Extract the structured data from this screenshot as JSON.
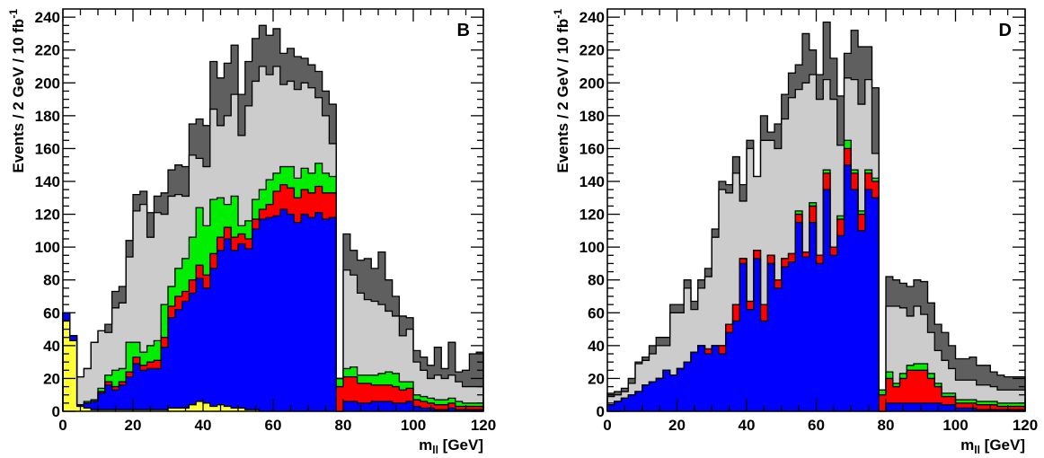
{
  "chart_data": [
    {
      "type": "bar",
      "stacked": true,
      "panel_label": "B",
      "xlabel": "m",
      "xlabel_sub": "ll",
      "xlabel_unit": " [GeV]",
      "ylabel": "Events / 2 GeV / 10 fb",
      "ylabel_sup": "-1",
      "xlim": [
        0,
        120
      ],
      "ylim": [
        0,
        245
      ],
      "xticks": [
        0,
        20,
        40,
        60,
        80,
        100,
        120
      ],
      "yticks": [
        0,
        20,
        40,
        60,
        80,
        100,
        120,
        140,
        160,
        180,
        200,
        220,
        240
      ],
      "bin_width": 2,
      "x": [
        1,
        3,
        5,
        7,
        9,
        11,
        13,
        15,
        17,
        19,
        21,
        23,
        25,
        27,
        29,
        31,
        33,
        35,
        37,
        39,
        41,
        43,
        45,
        47,
        49,
        51,
        53,
        55,
        57,
        59,
        61,
        63,
        65,
        67,
        69,
        71,
        73,
        75,
        77,
        79,
        81,
        83,
        85,
        87,
        89,
        91,
        93,
        95,
        97,
        99,
        101,
        103,
        105,
        107,
        109,
        111,
        113,
        115,
        117,
        119
      ],
      "series": [
        {
          "color": "#ffff33",
          "values": [
            55,
            43,
            3,
            2,
            1,
            1,
            1,
            1,
            1,
            1,
            1,
            1,
            1,
            1,
            1,
            2,
            2,
            2,
            4,
            6,
            5,
            3,
            4,
            3,
            2,
            2,
            1,
            1,
            0,
            0,
            0,
            0,
            0,
            0,
            0,
            0,
            0,
            0,
            0,
            0,
            0,
            0,
            0,
            0,
            0,
            0,
            0,
            0,
            0,
            0,
            0,
            0,
            0,
            0,
            0,
            0,
            0,
            0,
            0,
            0
          ]
        },
        {
          "color": "#0000ff",
          "values": [
            5,
            3,
            1,
            3,
            5,
            10,
            15,
            12,
            15,
            20,
            28,
            24,
            25,
            25,
            38,
            55,
            60,
            65,
            68,
            75,
            70,
            84,
            94,
            102,
            96,
            100,
            98,
            110,
            117,
            118,
            119,
            123,
            120,
            115,
            120,
            118,
            121,
            117,
            118,
            0,
            6,
            6,
            5,
            5,
            6,
            6,
            6,
            5,
            5,
            6,
            3,
            2,
            2,
            1,
            1,
            2,
            1,
            1,
            1,
            1
          ]
        },
        {
          "color": "#ff0000",
          "values": [
            0,
            0,
            0,
            0,
            0,
            1,
            2,
            2,
            2,
            3,
            4,
            3,
            4,
            5,
            6,
            7,
            8,
            6,
            8,
            8,
            8,
            9,
            8,
            7,
            8,
            6,
            6,
            6,
            6,
            8,
            15,
            15,
            16,
            15,
            15,
            15,
            16,
            16,
            15,
            15,
            15,
            15,
            12,
            12,
            10,
            10,
            10,
            10,
            8,
            8,
            4,
            4,
            3,
            3,
            3,
            3,
            2,
            2,
            2,
            2
          ]
        },
        {
          "color": "#00ee00",
          "values": [
            0,
            0,
            0,
            1,
            1,
            2,
            4,
            10,
            8,
            18,
            9,
            8,
            10,
            12,
            20,
            12,
            17,
            20,
            26,
            35,
            30,
            33,
            24,
            14,
            25,
            5,
            11,
            12,
            12,
            15,
            11,
            11,
            13,
            12,
            13,
            12,
            14,
            12,
            10,
            5,
            5,
            6,
            5,
            5,
            6,
            7,
            8,
            8,
            5,
            4,
            3,
            3,
            3,
            3,
            3,
            3,
            3,
            2,
            2,
            2
          ]
        },
        {
          "color": "#cccccc",
          "values": [
            0,
            0,
            17,
            20,
            35,
            35,
            26,
            38,
            40,
            52,
            80,
            90,
            66,
            78,
            55,
            55,
            45,
            38,
            50,
            30,
            36,
            55,
            44,
            54,
            62,
            55,
            70,
            72,
            75,
            64,
            65,
            50,
            52,
            54,
            52,
            52,
            40,
            35,
            20,
            0,
            60,
            56,
            50,
            46,
            45,
            42,
            37,
            35,
            28,
            32,
            20,
            16,
            12,
            15,
            13,
            14,
            12,
            10,
            10,
            10
          ]
        },
        {
          "color": "#5f5f5f",
          "values": [
            0,
            0,
            0,
            0,
            0,
            0,
            5,
            10,
            10,
            10,
            10,
            8,
            15,
            10,
            13,
            16,
            18,
            18,
            19,
            24,
            25,
            29,
            29,
            32,
            30,
            25,
            27,
            26,
            25,
            24,
            23,
            19,
            20,
            20,
            15,
            14,
            16,
            15,
            24,
            0,
            22,
            15,
            20,
            25,
            20,
            32,
            19,
            12,
            12,
            7,
            7,
            8,
            8,
            17,
            6,
            20,
            6,
            10,
            20,
            21
          ]
        }
      ]
    },
    {
      "type": "bar",
      "stacked": true,
      "panel_label": "D",
      "xlabel": "m",
      "xlabel_sub": "ll",
      "xlabel_unit": " [GeV]",
      "ylabel": "Events / 2 GeV / 10 fb",
      "ylabel_sup": "-1",
      "xlim": [
        0,
        120
      ],
      "ylim": [
        0,
        245
      ],
      "xticks": [
        0,
        20,
        40,
        60,
        80,
        100,
        120
      ],
      "yticks": [
        0,
        20,
        40,
        60,
        80,
        100,
        120,
        140,
        160,
        180,
        200,
        220,
        240
      ],
      "bin_width": 2,
      "x": [
        1,
        3,
        5,
        7,
        9,
        11,
        13,
        15,
        17,
        19,
        21,
        23,
        25,
        27,
        29,
        31,
        33,
        35,
        37,
        39,
        41,
        43,
        45,
        47,
        49,
        51,
        53,
        55,
        57,
        59,
        61,
        63,
        65,
        67,
        69,
        71,
        73,
        75,
        77,
        79,
        81,
        83,
        85,
        87,
        89,
        91,
        93,
        95,
        97,
        99,
        101,
        103,
        105,
        107,
        109,
        111,
        113,
        115,
        117,
        119
      ],
      "series": [
        {
          "color": "#ffff33",
          "values": [
            0,
            0,
            0,
            0,
            0,
            0,
            0,
            0,
            0,
            0,
            0,
            0,
            0,
            0,
            0,
            0,
            0,
            0,
            0,
            0,
            0,
            0,
            0,
            0,
            0,
            0,
            0,
            0,
            0,
            0,
            0,
            0,
            0,
            0,
            0,
            0,
            0,
            0,
            0,
            0,
            0,
            0,
            0,
            0,
            0,
            0,
            0,
            0,
            0,
            0,
            0,
            0,
            0,
            0,
            0,
            0,
            0,
            0,
            0,
            0
          ]
        },
        {
          "color": "#0000ff",
          "values": [
            4,
            6,
            8,
            10,
            12,
            16,
            18,
            20,
            25,
            22,
            26,
            30,
            36,
            40,
            35,
            40,
            35,
            48,
            55,
            90,
            62,
            93,
            55,
            90,
            75,
            88,
            91,
            115,
            94,
            115,
            90,
            135,
            95,
            107,
            150,
            135,
            110,
            135,
            130,
            0,
            5,
            5,
            5,
            5,
            5,
            5,
            5,
            5,
            4,
            4,
            2,
            2,
            2,
            1,
            1,
            1,
            1,
            1,
            1,
            1
          ]
        },
        {
          "color": "#ff0000",
          "values": [
            0,
            0,
            0,
            0,
            0,
            0,
            0,
            0,
            0,
            0,
            0,
            0,
            0,
            0,
            3,
            0,
            5,
            5,
            10,
            3,
            5,
            5,
            10,
            5,
            5,
            5,
            5,
            5,
            3,
            10,
            5,
            10,
            5,
            10,
            10,
            10,
            10,
            10,
            10,
            10,
            15,
            10,
            15,
            20,
            20,
            20,
            15,
            10,
            5,
            5,
            3,
            3,
            3,
            3,
            3,
            3,
            2,
            2,
            2,
            2
          ]
        },
        {
          "color": "#00ee00",
          "values": [
            0,
            0,
            0,
            0,
            0,
            0,
            0,
            0,
            0,
            0,
            0,
            0,
            0,
            0,
            0,
            0,
            0,
            0,
            0,
            0,
            0,
            0,
            0,
            0,
            0,
            0,
            0,
            2,
            0,
            2,
            0,
            2,
            0,
            2,
            5,
            2,
            2,
            2,
            2,
            3,
            4,
            2,
            3,
            3,
            4,
            4,
            3,
            2,
            2,
            2,
            2,
            2,
            2,
            2,
            2,
            2,
            2,
            2,
            2,
            2
          ]
        },
        {
          "color": "#cccccc",
          "values": [
            5,
            4,
            4,
            7,
            17,
            15,
            17,
            20,
            15,
            38,
            34,
            45,
            26,
            35,
            44,
            66,
            95,
            80,
            80,
            35,
            93,
            45,
            100,
            70,
            80,
            85,
            95,
            74,
            103,
            78,
            95,
            55,
            90,
            43,
            38,
            55,
            65,
            55,
            15,
            0,
            40,
            47,
            40,
            30,
            35,
            30,
            25,
            20,
            20,
            15,
            12,
            12,
            12,
            10,
            10,
            9,
            8,
            8,
            8,
            8
          ]
        },
        {
          "color": "#5f5f5f",
          "values": [
            2,
            2,
            2,
            3,
            1,
            2,
            5,
            5,
            5,
            5,
            5,
            5,
            5,
            5,
            5,
            5,
            5,
            5,
            10,
            10,
            5,
            0,
            15,
            5,
            15,
            15,
            15,
            15,
            30,
            15,
            15,
            35,
            25,
            30,
            15,
            30,
            35,
            20,
            40,
            0,
            18,
            16,
            15,
            18,
            16,
            20,
            18,
            16,
            17,
            14,
            13,
            13,
            14,
            12,
            12,
            9,
            9,
            8,
            8,
            8
          ]
        }
      ]
    }
  ]
}
